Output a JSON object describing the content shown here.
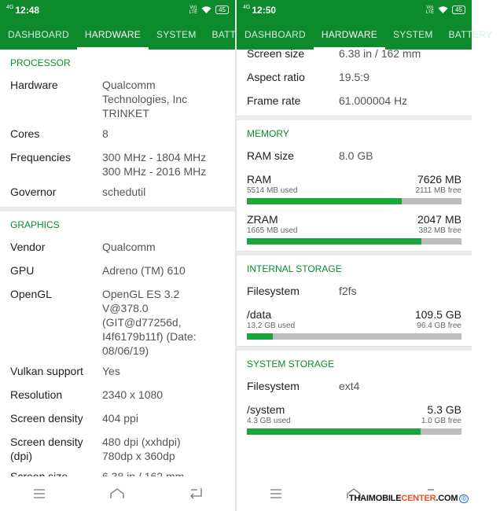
{
  "left": {
    "status": {
      "signal": "4G",
      "time": "12:48",
      "volte": "Vo)\nLTE",
      "battery": "45"
    },
    "tabs": [
      "DASHBOARD",
      "HARDWARE",
      "SYSTEM",
      "BATTERY"
    ],
    "active_tab": 1,
    "processor": {
      "title": "PROCESSOR",
      "rows": [
        {
          "k": "Hardware",
          "v": " Qualcomm\nTechnologies, Inc\nTRINKET"
        },
        {
          "k": "Cores",
          "v": "8"
        },
        {
          "k": "Frequencies",
          "v": "300 MHz - 1804 MHz\n300 MHz - 2016 MHz"
        },
        {
          "k": "Governor",
          "v": "schedutil"
        }
      ]
    },
    "graphics": {
      "title": "GRAPHICS",
      "rows": [
        {
          "k": "Vendor",
          "v": "Qualcomm"
        },
        {
          "k": "GPU",
          "v": "Adreno (TM) 610"
        },
        {
          "k": "OpenGL",
          "v": "OpenGL ES 3.2 V@378.0\n(GIT@d77256d,\nI4f6179b11f) (Date:\n08/06/19)"
        },
        {
          "k": "Vulkan support",
          "v": "Yes"
        },
        {
          "k": "Resolution",
          "v": "2340 x 1080"
        },
        {
          "k": "Screen density",
          "v": "404 ppi"
        },
        {
          "k": "Screen density\n(dpi)",
          "v": "480 dpi (xxhdpi)\n780dp x 360dp"
        },
        {
          "k": "Screen size",
          "v": "6.38 in / 162 mm"
        }
      ]
    }
  },
  "right": {
    "status": {
      "signal": "4G",
      "time": "12:50",
      "volte": "Vo)\nLTE",
      "battery": "45"
    },
    "tabs": [
      "DASHBOARD",
      "HARDWARE",
      "SYSTEM",
      "BATTERY"
    ],
    "active_tab": 1,
    "display_rows": [
      {
        "k": "Screen size",
        "v": "6.38 in / 162 mm"
      },
      {
        "k": "Aspect ratio",
        "v": "19.5:9"
      },
      {
        "k": "Frame rate",
        "v": "61.000004 Hz"
      }
    ],
    "memory": {
      "title": "MEMORY",
      "ram_size": {
        "k": "RAM size",
        "v": "8.0 GB"
      },
      "ram": {
        "label": "RAM",
        "total": "7626 MB",
        "used": "5514 MB used",
        "free": "2111 MB free",
        "fraction": 0.723
      },
      "zram": {
        "label": "ZRAM",
        "total": "2047 MB",
        "used": "1665 MB used",
        "free": "382 MB free",
        "fraction": 0.813
      }
    },
    "internal_storage": {
      "title": "INTERNAL STORAGE",
      "filesystem": {
        "k": "Filesystem",
        "v": "f2fs"
      },
      "data": {
        "label": "/data",
        "total": "109.5 GB",
        "used": "13.2 GB used",
        "free": "96.4 GB free",
        "fraction": 0.12
      }
    },
    "system_storage": {
      "title": "SYSTEM STORAGE",
      "filesystem": {
        "k": "Filesystem",
        "v": "ext4"
      },
      "system": {
        "label": "/system",
        "total": "5.3 GB",
        "used": "4.3 GB used",
        "free": "1.0 GB free",
        "fraction": 0.81
      }
    }
  },
  "watermark": {
    "part1": "THAIMOBILE",
    "part2": "CENTER",
    "part3": ".COM",
    "copy": "©"
  },
  "icons": {
    "menu": "menu-icon",
    "home": "home-icon",
    "back": "back-icon",
    "wifi": "wifi-icon"
  },
  "colors": {
    "accent": "#0d8a2c",
    "bar_fill": "#1aa63a",
    "bar_track": "#bdbdbd"
  }
}
